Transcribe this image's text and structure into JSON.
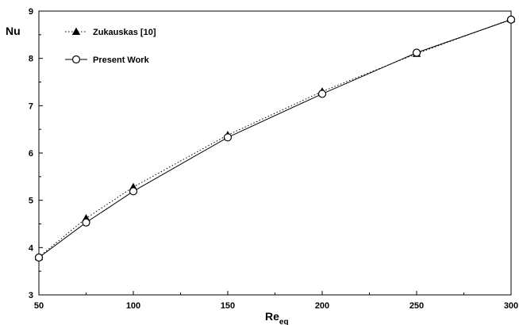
{
  "chart_data": {
    "type": "line",
    "title": "",
    "xlabel": "Re",
    "xlabel_subscript": "eq",
    "ylabel": "Nu",
    "xlim": [
      50,
      300
    ],
    "ylim": [
      3,
      9
    ],
    "x_ticks": [
      50,
      100,
      150,
      200,
      250,
      300
    ],
    "y_ticks": [
      3,
      4,
      5,
      6,
      7,
      8,
      9
    ],
    "grid": false,
    "legend_position": "top-left",
    "series": [
      {
        "name": "Zukauskas  [10]",
        "marker": "filled-triangle",
        "line_style": "dotted",
        "color": "#000000",
        "x": [
          50,
          75,
          100,
          150,
          200,
          250,
          300
        ],
        "y": [
          3.8,
          4.62,
          5.28,
          6.38,
          7.3,
          8.1,
          8.83
        ]
      },
      {
        "name": "Present Work",
        "marker": "open-circle",
        "line_style": "solid",
        "color": "#000000",
        "x": [
          50,
          75,
          100,
          150,
          200,
          250,
          300
        ],
        "y": [
          3.79,
          4.53,
          5.19,
          6.33,
          7.25,
          8.12,
          8.82
        ]
      }
    ]
  }
}
